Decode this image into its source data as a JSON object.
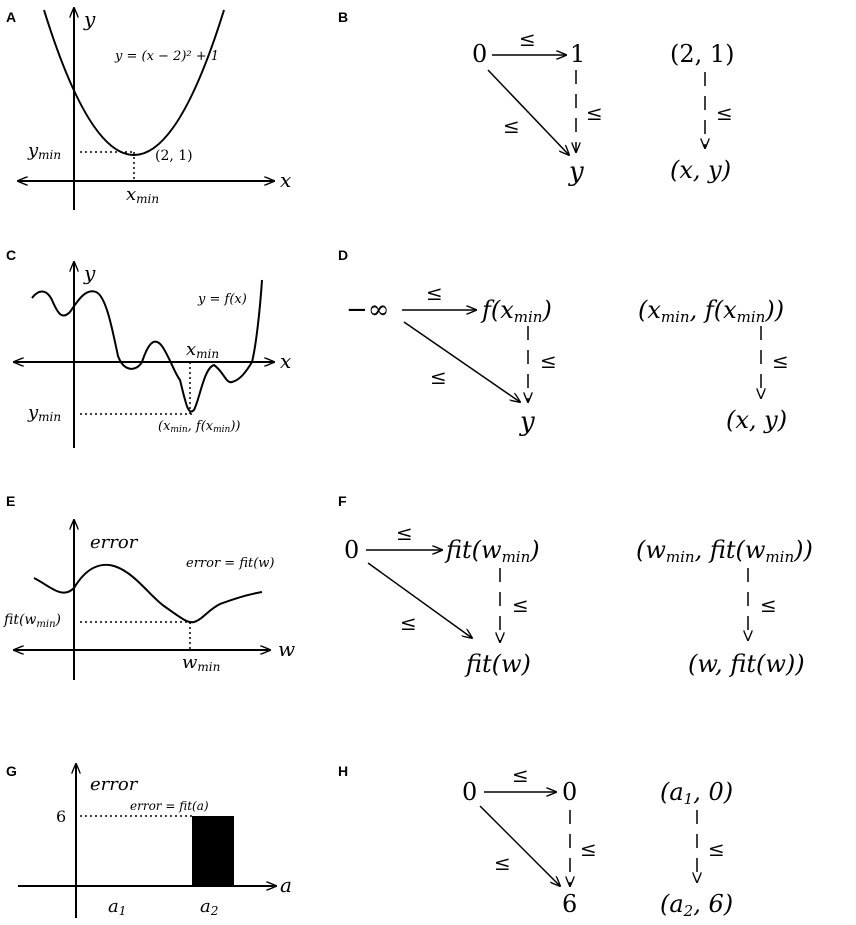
{
  "panels": {
    "A": {
      "label": "A",
      "y_axis": "y",
      "x_axis": "x",
      "equation": "y = (x − 2)² + 1",
      "point": "(2, 1)",
      "ymin": "y",
      "ymin_sub": "min",
      "xmin": "x",
      "xmin_sub": "min"
    },
    "B": {
      "label": "B",
      "zero": "0",
      "one": "1",
      "y": "y",
      "le": "≤",
      "pair_top": "(2, 1)",
      "pair_bottom": "(x, y)"
    },
    "C": {
      "label": "C",
      "y_axis": "y",
      "x_axis": "x",
      "equation": "y = f(x)",
      "xmin": "x",
      "xmin_sub": "min",
      "ymin": "y",
      "ymin_sub": "min",
      "point": "(x",
      "point_sub": "min",
      "point_mid": ", f(x",
      "point_end": "))"
    },
    "D": {
      "label": "D",
      "neg_inf": "−∞",
      "top_right": "f(x",
      "top_right_sub": "min",
      "top_right_end": ")",
      "y": "y",
      "le": "≤",
      "pair_top": "(x",
      "pair_top_sub": "min",
      "pair_top_mid": ", f(x",
      "pair_top_end": "))",
      "pair_bottom": "(x, y)"
    },
    "E": {
      "label": "E",
      "y_axis": "error",
      "x_axis": "w",
      "equation": "error = fit(w)",
      "fit_label": "fit(w",
      "fit_sub": "min",
      "fit_end": ")",
      "wmin": "w",
      "wmin_sub": "min"
    },
    "F": {
      "label": "F",
      "zero": "0",
      "top_right": "fit(w",
      "top_right_sub": "min",
      "top_right_end": ")",
      "bottom": "fit(w)",
      "le": "≤",
      "pair_top": "(w",
      "pair_top_sub": "min",
      "pair_top_mid": ", fit(w",
      "pair_top_end": "))",
      "pair_bottom": "(w, fit(w))"
    },
    "G": {
      "label": "G",
      "y_axis": "error",
      "x_axis": "a",
      "equation": "error = fit(a)",
      "tick6": "6",
      "a1": "a",
      "a1_sub": "1",
      "a2": "a",
      "a2_sub": "2"
    },
    "H": {
      "label": "H",
      "zero_left": "0",
      "zero_right": "0",
      "six": "6",
      "le": "≤",
      "pair_top": "(a",
      "pair_top_sub": "1",
      "pair_top_end": ", 0)",
      "pair_bottom": "(a",
      "pair_bottom_sub": "2",
      "pair_bottom_end": ", 6)"
    }
  }
}
